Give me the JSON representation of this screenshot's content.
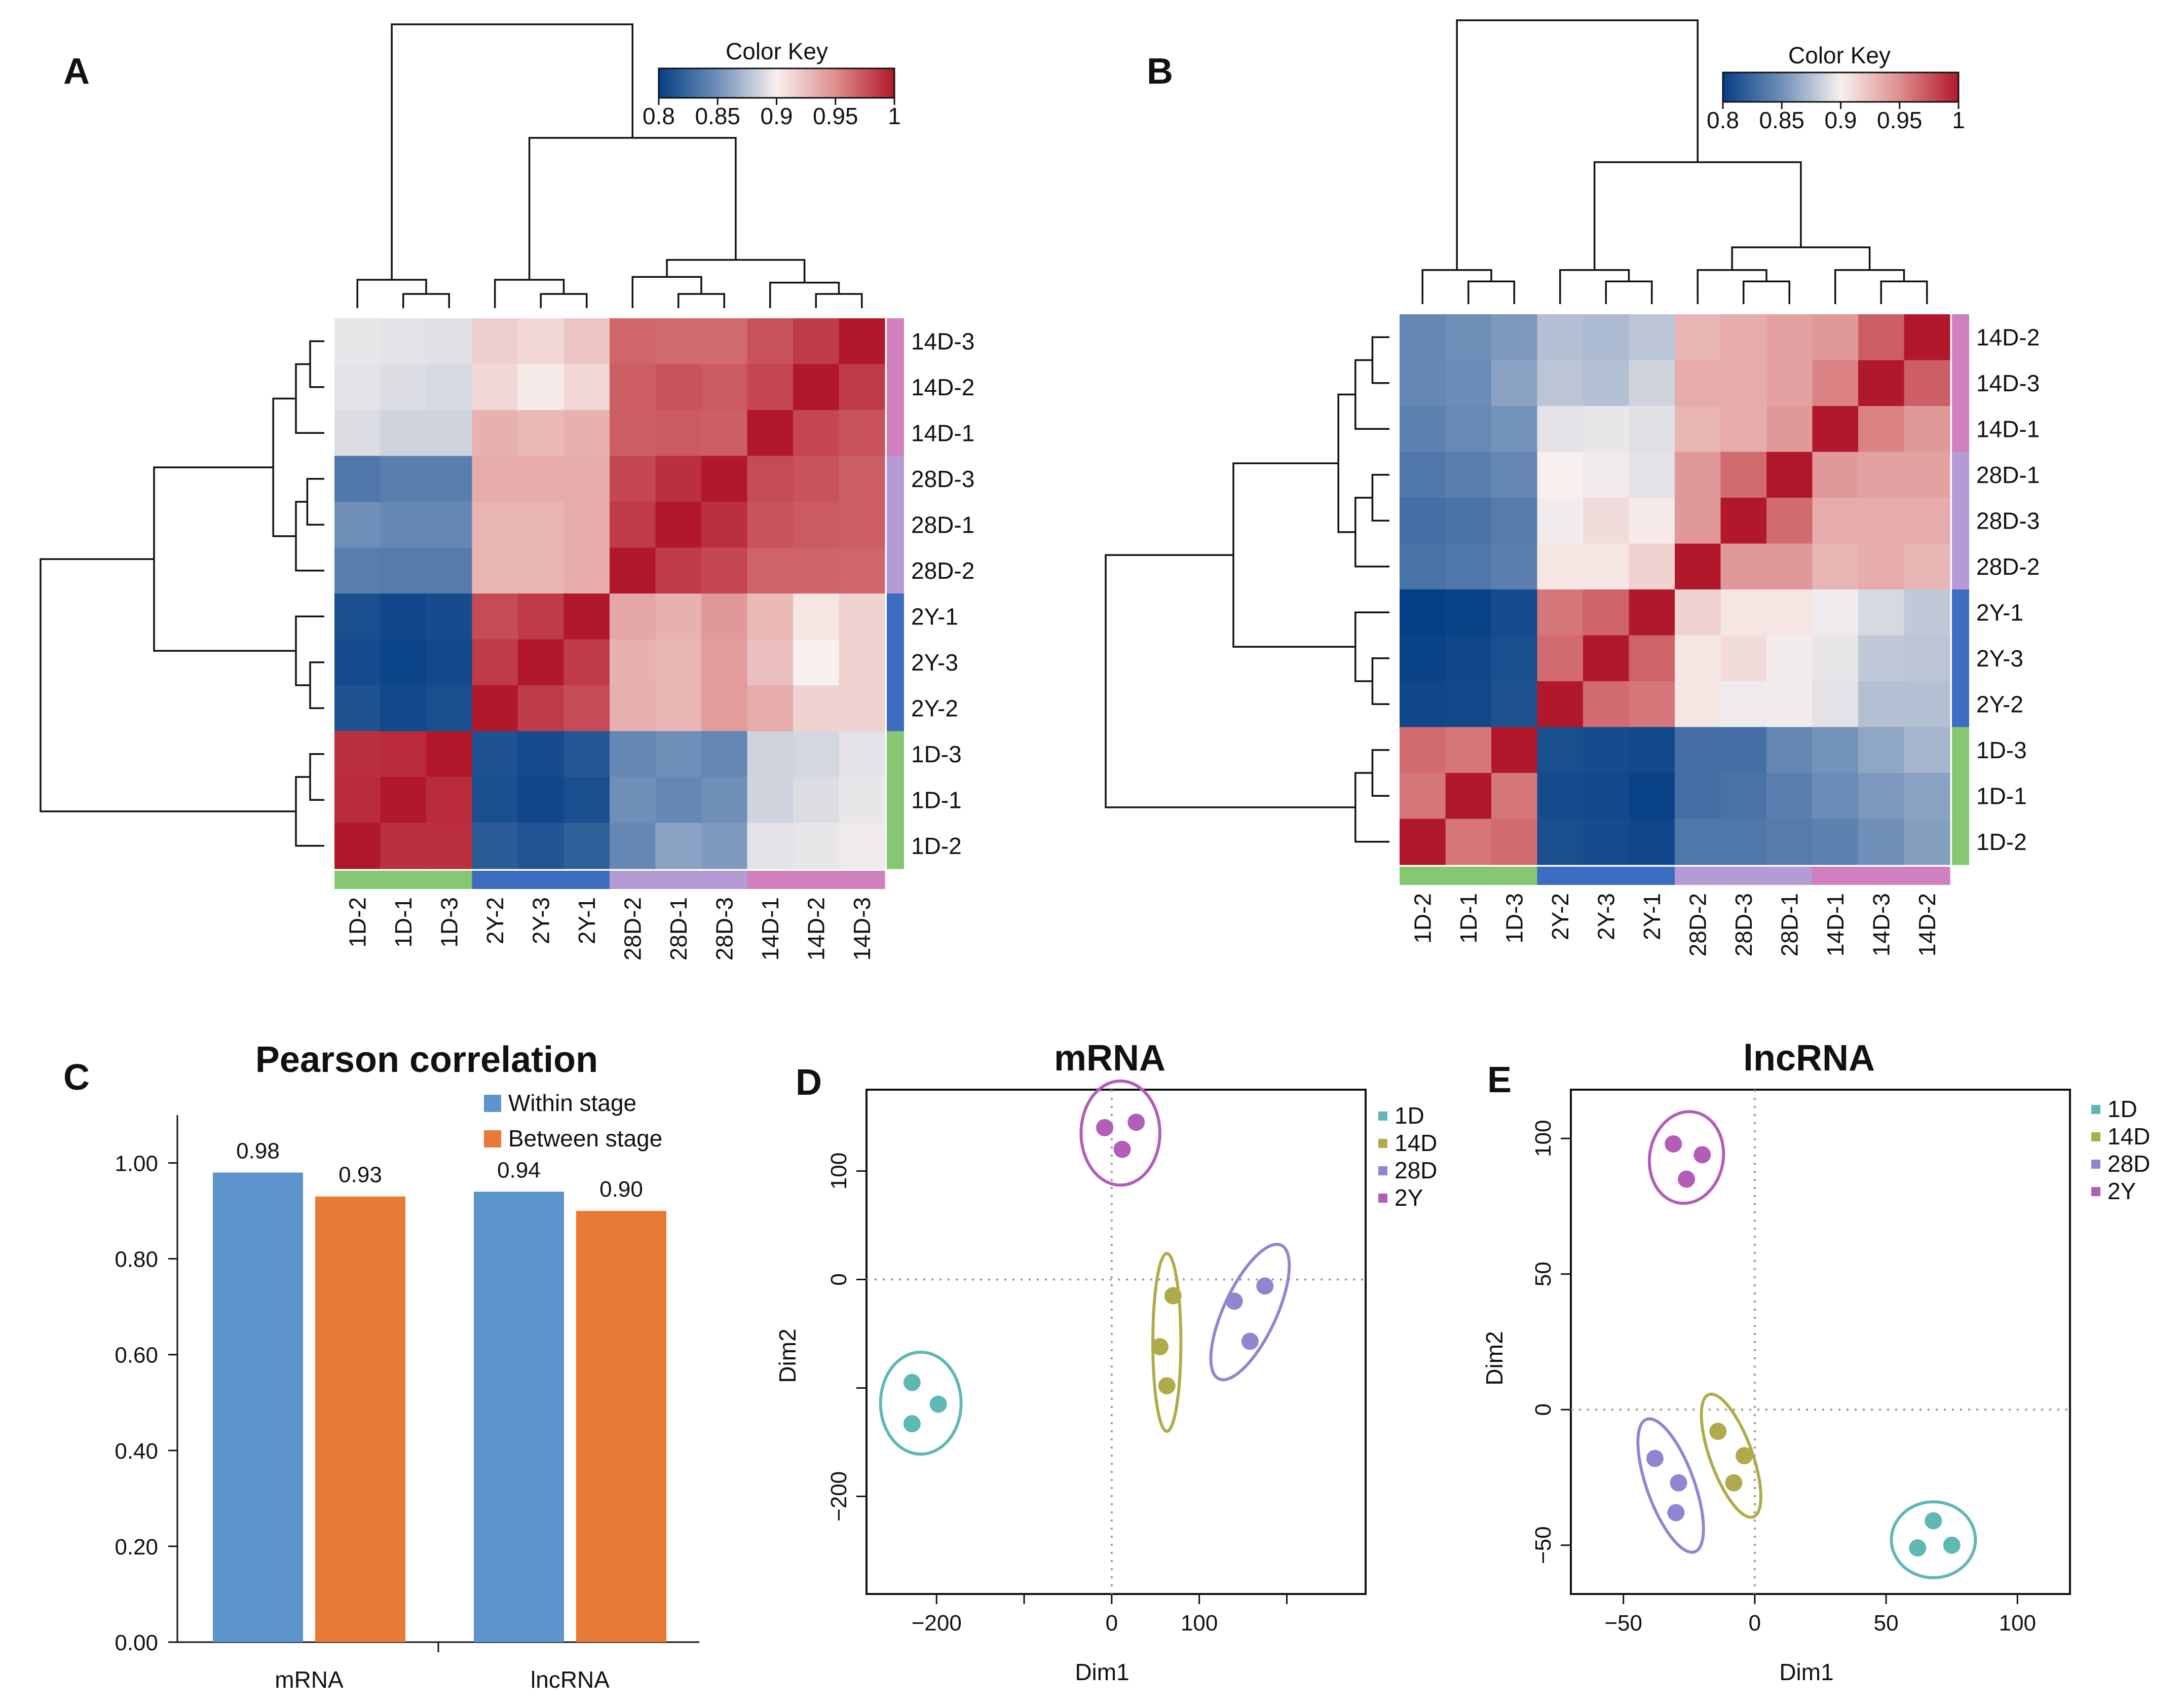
{
  "panels": {
    "A": "A",
    "B": "B",
    "C": "C",
    "D": "D",
    "E": "E"
  },
  "color_key": {
    "title": "Color Key",
    "ticks": [
      "0.8",
      "0.85",
      "0.9",
      "0.95",
      "1"
    ],
    "range": [
      0.8,
      1.0
    ],
    "colors": {
      "low": "#053f85",
      "mid": "#f7f0ee",
      "high": "#b2182b"
    }
  },
  "group_colors": {
    "1D": "#86c871",
    "2Y": "#3e6cc0",
    "28D": "#b49bd6",
    "14D": "#d07fbf"
  },
  "chart_data": [
    {
      "id": "heatmapA",
      "type": "heatmap",
      "title": "",
      "columns": [
        "1D-2",
        "1D-1",
        "1D-3",
        "2Y-2",
        "2Y-3",
        "2Y-1",
        "28D-2",
        "28D-1",
        "28D-3",
        "14D-1",
        "14D-2",
        "14D-3"
      ],
      "column_groups": [
        "1D",
        "1D",
        "1D",
        "2Y",
        "2Y",
        "2Y",
        "28D",
        "28D",
        "28D",
        "14D",
        "14D",
        "14D"
      ],
      "rows": [
        "14D-3",
        "14D-2",
        "14D-1",
        "28D-3",
        "28D-1",
        "28D-2",
        "2Y-1",
        "2Y-3",
        "2Y-2",
        "1D-3",
        "1D-1",
        "1D-2"
      ],
      "row_groups": [
        "14D",
        "14D",
        "14D",
        "28D",
        "28D",
        "28D",
        "2Y",
        "2Y",
        "2Y",
        "1D",
        "1D",
        "1D"
      ],
      "values": [
        [
          0.895,
          0.893,
          0.892,
          0.917,
          0.912,
          0.922,
          0.967,
          0.965,
          0.965,
          0.975,
          0.985,
          1.0
        ],
        [
          0.893,
          0.89,
          0.888,
          0.912,
          0.903,
          0.913,
          0.97,
          0.975,
          0.972,
          0.98,
          1.0,
          0.985
        ],
        [
          0.89,
          0.885,
          0.885,
          0.932,
          0.928,
          0.932,
          0.97,
          0.972,
          0.97,
          1.0,
          0.98,
          0.975
        ],
        [
          0.835,
          0.84,
          0.84,
          0.935,
          0.935,
          0.935,
          0.98,
          0.99,
          1.0,
          0.978,
          0.975,
          0.97
        ],
        [
          0.85,
          0.845,
          0.845,
          0.93,
          0.93,
          0.935,
          0.985,
          1.0,
          0.99,
          0.975,
          0.972,
          0.97
        ],
        [
          0.84,
          0.838,
          0.838,
          0.93,
          0.93,
          0.935,
          1.0,
          0.985,
          0.98,
          0.968,
          0.968,
          0.967
        ],
        [
          0.81,
          0.805,
          0.808,
          0.978,
          0.985,
          1.0,
          0.937,
          0.932,
          0.945,
          0.928,
          0.905,
          0.915
        ],
        [
          0.808,
          0.803,
          0.806,
          0.985,
          1.0,
          0.985,
          0.932,
          0.93,
          0.943,
          0.925,
          0.9,
          0.915
        ],
        [
          0.812,
          0.806,
          0.81,
          1.0,
          0.985,
          0.978,
          0.933,
          0.93,
          0.943,
          0.935,
          0.915,
          0.915
        ],
        [
          0.99,
          0.992,
          1.0,
          0.812,
          0.808,
          0.815,
          0.845,
          0.85,
          0.845,
          0.885,
          0.887,
          0.893
        ],
        [
          0.992,
          1.0,
          0.992,
          0.81,
          0.805,
          0.81,
          0.85,
          0.845,
          0.85,
          0.885,
          0.89,
          0.895
        ],
        [
          1.0,
          0.99,
          0.99,
          0.818,
          0.813,
          0.82,
          0.845,
          0.86,
          0.855,
          0.893,
          0.895,
          0.897
        ]
      ]
    },
    {
      "id": "heatmapB",
      "type": "heatmap",
      "title": "",
      "columns": [
        "1D-2",
        "1D-1",
        "1D-3",
        "2Y-2",
        "2Y-3",
        "2Y-1",
        "28D-2",
        "28D-3",
        "28D-1",
        "14D-1",
        "14D-3",
        "14D-2"
      ],
      "column_groups": [
        "1D",
        "1D",
        "1D",
        "2Y",
        "2Y",
        "2Y",
        "28D",
        "28D",
        "28D",
        "14D",
        "14D",
        "14D"
      ],
      "rows": [
        "14D-2",
        "14D-3",
        "14D-1",
        "28D-1",
        "28D-3",
        "28D-2",
        "2Y-1",
        "2Y-3",
        "2Y-2",
        "1D-3",
        "1D-1",
        "1D-2"
      ],
      "row_groups": [
        "14D",
        "14D",
        "14D",
        "28D",
        "28D",
        "28D",
        "2Y",
        "2Y",
        "2Y",
        "1D",
        "1D",
        "1D"
      ],
      "values": [
        [
          0.845,
          0.85,
          0.855,
          0.875,
          0.872,
          0.878,
          0.93,
          0.935,
          0.94,
          0.945,
          0.97,
          1.0
        ],
        [
          0.845,
          0.848,
          0.86,
          0.878,
          0.875,
          0.885,
          0.935,
          0.935,
          0.94,
          0.955,
          1.0,
          0.97
        ],
        [
          0.842,
          0.846,
          0.852,
          0.893,
          0.895,
          0.892,
          0.93,
          0.935,
          0.945,
          1.0,
          0.955,
          0.945
        ],
        [
          0.835,
          0.84,
          0.845,
          0.9,
          0.897,
          0.893,
          0.945,
          0.965,
          1.0,
          0.945,
          0.94,
          0.94
        ],
        [
          0.83,
          0.833,
          0.838,
          0.898,
          0.91,
          0.903,
          0.945,
          1.0,
          0.965,
          0.935,
          0.935,
          0.935
        ],
        [
          0.832,
          0.835,
          0.84,
          0.905,
          0.905,
          0.915,
          1.0,
          0.945,
          0.945,
          0.93,
          0.935,
          0.93
        ],
        [
          0.8,
          0.802,
          0.808,
          0.96,
          0.968,
          1.0,
          0.915,
          0.905,
          0.905,
          0.897,
          0.888,
          0.88
        ],
        [
          0.802,
          0.805,
          0.81,
          0.965,
          1.0,
          0.968,
          0.905,
          0.91,
          0.898,
          0.895,
          0.88,
          0.878
        ],
        [
          0.805,
          0.806,
          0.812,
          1.0,
          0.965,
          0.96,
          0.905,
          0.897,
          0.898,
          0.893,
          0.875,
          0.875
        ],
        [
          0.965,
          0.96,
          1.0,
          0.81,
          0.808,
          0.806,
          0.83,
          0.83,
          0.845,
          0.852,
          0.862,
          0.87
        ],
        [
          0.96,
          1.0,
          0.96,
          0.808,
          0.806,
          0.802,
          0.83,
          0.832,
          0.84,
          0.848,
          0.855,
          0.86
        ],
        [
          1.0,
          0.96,
          0.965,
          0.81,
          0.808,
          0.805,
          0.835,
          0.835,
          0.838,
          0.842,
          0.85,
          0.858
        ]
      ]
    },
    {
      "id": "barC",
      "type": "bar",
      "title": "Pearson correlation",
      "categories": [
        "mRNA",
        "lncRNA"
      ],
      "series": [
        {
          "name": "Within stage",
          "color": "#5b95cb",
          "values": [
            0.98,
            0.94
          ],
          "labels": [
            "0.98",
            "0.94"
          ]
        },
        {
          "name": "Between stage",
          "color": "#e87a35",
          "values": [
            0.93,
            0.9
          ],
          "labels": [
            "0.93",
            "0.90"
          ]
        }
      ],
      "yticks": [
        "0.00",
        "0.20",
        "0.40",
        "0.60",
        "0.80",
        "1.00"
      ],
      "ylim": [
        0,
        1.1
      ],
      "xlabel": "",
      "ylabel": ""
    },
    {
      "id": "scatterD",
      "type": "scatter",
      "title": "mRNA",
      "xlabel": "Dim1",
      "ylabel": "Dim2",
      "xlim": [
        -280,
        290
      ],
      "ylim": [
        -290,
        175
      ],
      "xticks": [
        -200,
        0,
        100
      ],
      "xtick_marks": [
        -200,
        -100,
        0,
        100,
        200
      ],
      "yticks": [
        -200,
        0,
        100
      ],
      "ytick_marks": [
        -200,
        -100,
        0,
        100
      ],
      "groups": [
        {
          "name": "1D",
          "color": "#5fb8b4",
          "points": [
            [
              -228,
              -95
            ],
            [
              -198,
              -115
            ],
            [
              -228,
              -133
            ]
          ],
          "ellipse": {
            "cx": -218,
            "cy": -114,
            "rx": 46,
            "ry": 47,
            "angle": 0
          }
        },
        {
          "name": "14D",
          "color": "#b0ab4a",
          "points": [
            [
              70,
              -15
            ],
            [
              55,
              -62
            ],
            [
              63,
              -98
            ]
          ],
          "ellipse": {
            "cx": 63,
            "cy": -58,
            "rx": 16,
            "ry": 82,
            "angle": 0
          }
        },
        {
          "name": "28D",
          "color": "#8f86d2",
          "points": [
            [
              175,
              -6
            ],
            [
              140,
              -20
            ],
            [
              158,
              -57
            ]
          ],
          "ellipse": {
            "cx": 158,
            "cy": -30,
            "rx": 30,
            "ry": 68,
            "angle": 25
          }
        },
        {
          "name": "2Y",
          "color": "#b35cb8",
          "points": [
            [
              -8,
              140
            ],
            [
              28,
              145
            ],
            [
              12,
              120
            ]
          ],
          "ellipse": {
            "cx": 10,
            "cy": 135,
            "rx": 45,
            "ry": 48,
            "angle": 0
          }
        }
      ]
    },
    {
      "id": "scatterE",
      "type": "scatter",
      "title": "lncRNA",
      "xlabel": "Dim1",
      "ylabel": "Dim2",
      "xlim": [
        -70,
        120
      ],
      "ylim": [
        -68,
        118
      ],
      "xticks": [
        -50,
        0,
        50,
        100
      ],
      "xtick_marks": [
        -50,
        0,
        50,
        100
      ],
      "yticks": [
        -50,
        0,
        50,
        100
      ],
      "ytick_marks": [
        -50,
        0,
        50,
        100
      ],
      "groups": [
        {
          "name": "1D",
          "color": "#5fb8b4",
          "points": [
            [
              68,
              -41
            ],
            [
              62,
              -51
            ],
            [
              75,
              -50
            ]
          ],
          "ellipse": {
            "cx": 68,
            "cy": -48,
            "rx": 16,
            "ry": 14,
            "angle": 0
          }
        },
        {
          "name": "14D",
          "color": "#b0ab4a",
          "points": [
            [
              -14,
              -8
            ],
            [
              -4,
              -17
            ],
            [
              -8,
              -27
            ]
          ],
          "ellipse": {
            "cx": -9,
            "cy": -17,
            "rx": 8,
            "ry": 24,
            "angle": -20
          }
        },
        {
          "name": "28D",
          "color": "#8f86d2",
          "points": [
            [
              -38,
              -18
            ],
            [
              -29,
              -27
            ],
            [
              -30,
              -38
            ]
          ],
          "ellipse": {
            "cx": -32,
            "cy": -28,
            "rx": 9,
            "ry": 26,
            "angle": -20
          }
        },
        {
          "name": "2Y",
          "color": "#b35cb8",
          "points": [
            [
              -31,
              98
            ],
            [
              -20,
              94
            ],
            [
              -26,
              85
            ]
          ],
          "ellipse": {
            "cx": -26,
            "cy": 93,
            "rx": 14,
            "ry": 17,
            "angle": 10
          }
        }
      ]
    }
  ]
}
